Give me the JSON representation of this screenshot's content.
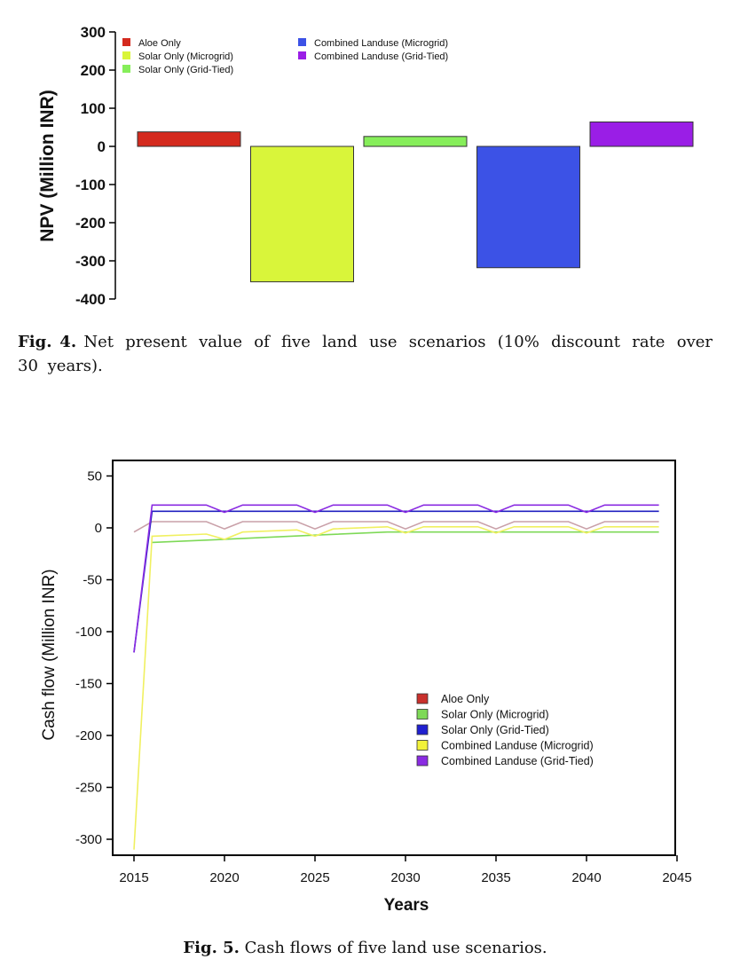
{
  "figure4": {
    "caption_label": "Fig. 4.",
    "caption_text": "Net present value of five land use scenarios (10% discount rate over 30 years).",
    "chart_data": {
      "type": "bar",
      "ylabel": "NPV (Million INR)",
      "ylim": [
        -400,
        300
      ],
      "yticks": [
        "300",
        "200",
        "100",
        "0",
        "-100",
        "-200",
        "-300",
        "-400"
      ],
      "ytick_values": [
        300,
        200,
        100,
        0,
        -100,
        -200,
        -300,
        -400
      ],
      "categories": [
        "Aloe Only",
        "Solar Only (Microgrid)",
        "Solar Only (Grid-Tied)",
        "Combined Landuse (Microgrid)",
        "Combined Landuse (Grid-Tied)"
      ],
      "values": [
        38,
        -355,
        26,
        -318,
        64
      ],
      "colors": [
        "#d42a1e",
        "#d9f53a",
        "#86ee5a",
        "#3c52e6",
        "#9a1ee6"
      ],
      "legend": {
        "placement": "top-left",
        "entries": [
          "Aloe Only",
          "Solar Only (Microgrid)",
          "Solar Only (Grid-Tied)",
          "Combined Landuse (Microgrid)",
          "Combined Landuse (Grid-Tied)"
        ]
      },
      "grid": false
    }
  },
  "figure5": {
    "caption_label": "Fig. 5.",
    "caption_text": "Cash flows of five land use scenarios.",
    "chart_data": {
      "type": "line",
      "xlabel": "Years",
      "ylabel": "Cash flow (Million INR)",
      "xlim": [
        2014.2,
        2045.2
      ],
      "ylim": [
        -315,
        63
      ],
      "xticks": [
        "2015",
        "2020",
        "2025",
        "2030",
        "2035",
        "2040",
        "2045"
      ],
      "xtick_values": [
        2015,
        2020,
        2025,
        2030,
        2035,
        2040,
        2045
      ],
      "yticks": [
        "50",
        "0",
        "-50",
        "-100",
        "-150",
        "-200",
        "-250",
        "-300"
      ],
      "ytick_values": [
        50,
        0,
        -50,
        -100,
        -150,
        -200,
        -250,
        -300
      ],
      "grid": false,
      "legend": {
        "placement": "bottom-right",
        "entries": [
          "Aloe Only",
          "Solar Only (Microgrid)",
          "Solar Only (Grid-Tied)",
          "Combined Landuse (Microgrid)",
          "Combined Landuse (Grid-Tied)"
        ],
        "colors": [
          "#c9302c",
          "#7ed957",
          "#2020d0",
          "#f2f23a",
          "#8a2be2"
        ]
      },
      "series": [
        {
          "name": "Aloe Only",
          "color": "#c9a0a8",
          "x": [
            2015,
            2016,
            2019,
            2020,
            2021,
            2024,
            2025,
            2026,
            2029,
            2030,
            2031,
            2034,
            2035,
            2036,
            2039,
            2040,
            2041,
            2044
          ],
          "y": [
            -4,
            6,
            6,
            -1,
            6,
            6,
            -1,
            6,
            6,
            -1,
            6,
            6,
            -1,
            6,
            6,
            -1,
            6,
            6
          ]
        },
        {
          "name": "Solar Only (Microgrid)",
          "color": "#7ed957",
          "x": [
            2016,
            2020,
            2025,
            2029,
            2035,
            2040,
            2044
          ],
          "y": [
            -14,
            -11,
            -7,
            -4,
            -4,
            -4,
            -4
          ]
        },
        {
          "name": "Solar Only (Grid-Tied)",
          "color": "#2020c0",
          "x": [
            2015,
            2016,
            2044
          ],
          "y": [
            -120,
            16,
            16
          ]
        },
        {
          "name": "Combined Landuse (Microgrid)",
          "color": "#f0f060",
          "x": [
            2015,
            2016,
            2019,
            2020,
            2021,
            2024,
            2025,
            2026,
            2029,
            2030,
            2031,
            2034,
            2035,
            2036,
            2039,
            2040,
            2041,
            2044
          ],
          "y": [
            -310,
            -8,
            -6,
            -11,
            -4,
            -2,
            -8,
            -1,
            1,
            -5,
            1,
            1,
            -5,
            1,
            1,
            -5,
            1,
            1
          ]
        },
        {
          "name": "Combined Landuse (Grid-Tied)",
          "color": "#8a2be2",
          "x": [
            2015,
            2016,
            2019,
            2020,
            2021,
            2024,
            2025,
            2026,
            2029,
            2030,
            2031,
            2034,
            2035,
            2036,
            2039,
            2040,
            2041,
            2044
          ],
          "y": [
            -120,
            22,
            22,
            15,
            22,
            22,
            15,
            22,
            22,
            15,
            22,
            22,
            15,
            22,
            22,
            15,
            22,
            22
          ]
        }
      ]
    }
  }
}
